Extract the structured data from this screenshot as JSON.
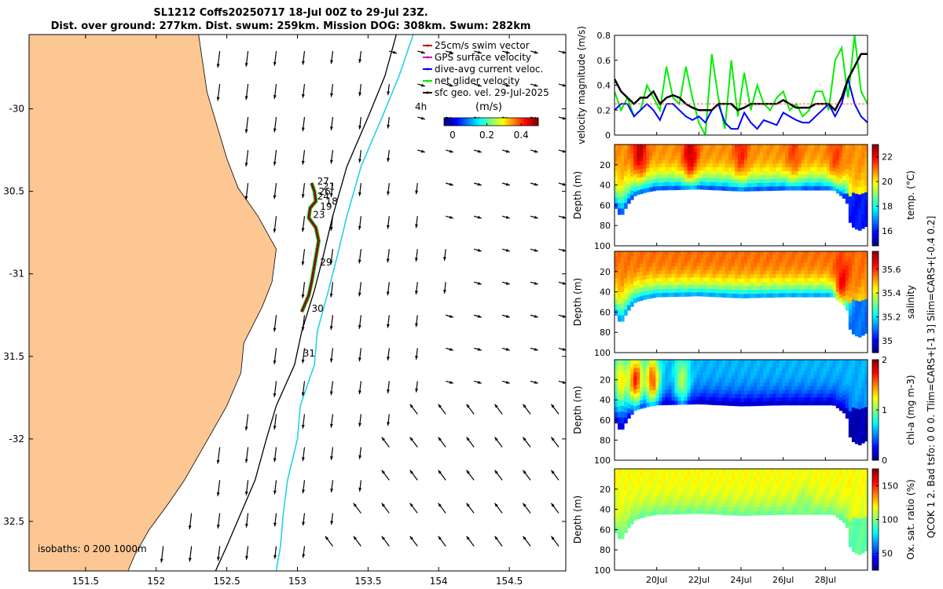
{
  "title_line1": "SL1212 Coffs20250717 18-Jul 00Z to 29-Jul 23Z.",
  "title_line2": "Dist. over ground: 277km. Dist. swum: 259km. Mission DOG: 308km. Swum: 282km",
  "side_label": "QCOK 1   2. Bad tsfo:  0   0   0. Tlim=CARS+[-1 3] Slim=CARS+[-0.4 0.2]",
  "chart_data": [
    {
      "type": "scatter",
      "name": "map",
      "xlim": [
        151.1,
        154.9
      ],
      "ylim": [
        -32.8,
        -29.55
      ],
      "x_ticks": [
        151.5,
        152,
        152.5,
        153,
        153.5,
        154,
        154.5
      ],
      "x_tick_labels": [
        "151.5",
        "152",
        "152.5",
        "153",
        "153.5",
        "154",
        "154.5"
      ],
      "y_ticks": [
        -30,
        -30.5,
        -31,
        -31.5,
        -32,
        -32.5
      ],
      "y_tick_labels": [
        "-30",
        "30.5",
        "-31",
        "31.5",
        "-32",
        "32.5"
      ],
      "legend": [
        "25cm/s swim vector",
        "GPS surface velocity",
        "dive-avg current veloc.",
        "net glider velocity",
        "sfc geo. vel. 29-Jul-2025"
      ],
      "legend_colors": [
        "#cc0000",
        "#cc00cc",
        "#0000ff",
        "#00ee00",
        "#000000"
      ],
      "scale_label": "4h",
      "colorbar": {
        "label": "(m/s)",
        "ticks": [
          0,
          0.2,
          0.4
        ],
        "tick_labels": [
          "0",
          "0.2",
          "0.4"
        ],
        "range": [
          -0.05,
          0.5
        ]
      },
      "isobaths_label": "isobaths: 0   200  1000m",
      "day_labels": [
        {
          "text": "27",
          "lon": 153.14,
          "lat": -30.46
        },
        {
          "text": "21",
          "lon": 153.18,
          "lat": -30.49
        },
        {
          "text": "26",
          "lon": 153.15,
          "lat": -30.52
        },
        {
          "text": "24",
          "lon": 153.14,
          "lat": -30.55
        },
        {
          "text": "18",
          "lon": 153.2,
          "lat": -30.58
        },
        {
          "text": "19",
          "lon": 153.16,
          "lat": -30.61
        },
        {
          "text": "23",
          "lon": 153.11,
          "lat": -30.66
        },
        {
          "text": "29",
          "lon": 153.16,
          "lat": -30.95
        },
        {
          "text": "30",
          "lon": 153.1,
          "lat": -31.23
        },
        {
          "text": "31",
          "lon": 153.04,
          "lat": -31.5
        }
      ],
      "glider_track": [
        [
          153.1,
          -30.45
        ],
        [
          153.12,
          -30.5
        ],
        [
          153.13,
          -30.56
        ],
        [
          153.09,
          -30.6
        ],
        [
          153.08,
          -30.66
        ],
        [
          153.13,
          -30.72
        ],
        [
          153.15,
          -30.8
        ],
        [
          153.12,
          -30.95
        ],
        [
          153.1,
          -31.05
        ],
        [
          153.08,
          -31.13
        ],
        [
          153.03,
          -31.23
        ]
      ],
      "coastline": [
        [
          152.3,
          -29.55
        ],
        [
          152.36,
          -29.9
        ],
        [
          152.5,
          -30.3
        ],
        [
          152.58,
          -30.48
        ],
        [
          152.72,
          -30.65
        ],
        [
          152.85,
          -30.85
        ],
        [
          152.82,
          -31.05
        ],
        [
          152.75,
          -31.2
        ],
        [
          152.62,
          -31.42
        ],
        [
          152.6,
          -31.6
        ],
        [
          152.5,
          -31.8
        ],
        [
          152.4,
          -31.95
        ],
        [
          152.3,
          -32.1
        ],
        [
          152.2,
          -32.25
        ],
        [
          152.08,
          -32.4
        ],
        [
          151.95,
          -32.55
        ],
        [
          151.85,
          -32.7
        ],
        [
          151.8,
          -32.8
        ]
      ],
      "isobath_200": [
        [
          153.7,
          -29.55
        ],
        [
          153.62,
          -29.8
        ],
        [
          153.5,
          -30.05
        ],
        [
          153.35,
          -30.35
        ],
        [
          153.25,
          -30.65
        ],
        [
          153.18,
          -30.9
        ],
        [
          153.12,
          -31.1
        ],
        [
          153.03,
          -31.35
        ],
        [
          152.98,
          -31.55
        ],
        [
          152.85,
          -31.8
        ],
        [
          152.78,
          -32.0
        ],
        [
          152.7,
          -32.25
        ],
        [
          152.6,
          -32.45
        ],
        [
          152.5,
          -32.65
        ],
        [
          152.42,
          -32.8
        ]
      ],
      "isobath_1000": [
        [
          153.82,
          -29.55
        ],
        [
          153.72,
          -29.8
        ],
        [
          153.6,
          -30.05
        ],
        [
          153.45,
          -30.35
        ],
        [
          153.35,
          -30.65
        ],
        [
          153.28,
          -30.9
        ],
        [
          153.22,
          -31.1
        ],
        [
          153.14,
          -31.35
        ],
        [
          153.12,
          -31.55
        ],
        [
          153.02,
          -31.8
        ],
        [
          153.0,
          -32.0
        ],
        [
          152.93,
          -32.25
        ],
        [
          152.9,
          -32.45
        ],
        [
          152.88,
          -32.65
        ],
        [
          152.85,
          -32.8
        ]
      ]
    },
    {
      "type": "line",
      "name": "velocity",
      "ylabel": "velocity magnitude (m/s)",
      "ylim": [
        0,
        0.8
      ],
      "y_ticks": [
        0,
        0.2,
        0.4,
        0.6,
        0.8
      ],
      "x_range_days": [
        18,
        30
      ],
      "series": [
        {
          "color": "#00ee00",
          "values": [
            0.35,
            0.2,
            0.3,
            0.15,
            0.2,
            0.4,
            0.3,
            0.2,
            0.55,
            0.3,
            0.25,
            0.55,
            0.3,
            0.1,
            0.0,
            0.65,
            0.3,
            0.05,
            0.6,
            0.15,
            0.5,
            0.2,
            0.4,
            0.25,
            0.2,
            0.3,
            0.35,
            0.2,
            0.25,
            0.15,
            0.2,
            0.35,
            0.35,
            0.2,
            0.6,
            0.7,
            0.3,
            0.8,
            0.35,
            0.25
          ]
        },
        {
          "color": "#0000ff",
          "values": [
            0.2,
            0.25,
            0.25,
            0.15,
            0.2,
            0.25,
            0.2,
            0.12,
            0.25,
            0.25,
            0.2,
            0.15,
            0.12,
            0.15,
            0.1,
            0.2,
            0.25,
            0.1,
            0.05,
            0.05,
            0.18,
            0.1,
            0.05,
            0.12,
            0.1,
            0.08,
            0.18,
            0.15,
            0.12,
            0.1,
            0.1,
            0.15,
            0.2,
            0.25,
            0.15,
            0.25,
            0.45,
            0.25,
            0.15,
            0.1
          ]
        },
        {
          "color": "#000000",
          "values": [
            0.45,
            0.35,
            0.3,
            0.25,
            0.3,
            0.3,
            0.35,
            0.25,
            0.3,
            0.32,
            0.3,
            0.25,
            0.22,
            0.2,
            0.2,
            0.2,
            0.25,
            0.25,
            0.25,
            0.2,
            0.22,
            0.25,
            0.25,
            0.25,
            0.25,
            0.25,
            0.28,
            0.25,
            0.22,
            0.22,
            0.22,
            0.25,
            0.25,
            0.25,
            0.2,
            0.3,
            0.45,
            0.55,
            0.65,
            0.65
          ]
        },
        {
          "color": "#ff5555",
          "values": [
            0.25,
            0.25,
            0.25,
            0.25,
            0.25,
            0.25,
            0.25,
            0.25,
            0.25,
            0.25,
            0.25,
            0.25,
            0.25,
            0.25,
            0.25,
            0.25,
            0.25,
            0.25,
            0.25,
            0.25,
            0.25,
            0.25,
            0.25,
            0.25,
            0.25,
            0.25,
            0.25,
            0.25,
            0.25,
            0.25,
            0.25,
            0.25,
            0.25,
            0.25,
            0.25,
            0.25,
            0.25,
            0.25,
            0.25,
            0.25
          ]
        }
      ]
    },
    {
      "type": "heatmap",
      "name": "temperature",
      "ylabel": "Depth (m)",
      "cbar_label": "temp. (°C)",
      "cbar_ticks": [
        16,
        18,
        20,
        22
      ],
      "cbar_range": [
        14.8,
        23
      ],
      "y_ticks": [
        20,
        40,
        60,
        80,
        100
      ],
      "ylim": [
        0,
        100
      ],
      "base_value": 20.8,
      "deep_value": 16,
      "blobs": [
        [
          19.2,
          5,
          22.5
        ],
        [
          21.6,
          8,
          22.5
        ],
        [
          24,
          5,
          21.8
        ],
        [
          26.5,
          5,
          21.5
        ],
        [
          28.5,
          10,
          21.5
        ]
      ]
    },
    {
      "type": "heatmap",
      "name": "salinity",
      "ylabel": "Depth (m)",
      "cbar_label": "salinity",
      "cbar_ticks": [
        35,
        35.2,
        35.4,
        35.6
      ],
      "cbar_range": [
        34.9,
        35.75
      ],
      "y_ticks": [
        20,
        40,
        60,
        80,
        100
      ],
      "ylim": [
        0,
        100
      ],
      "base_value": 35.55,
      "deep_value": 35.1,
      "blobs": [
        [
          28.8,
          30,
          35.65
        ]
      ]
    },
    {
      "type": "heatmap",
      "name": "chl",
      "ylabel": "Depth (m)",
      "cbar_label": "chl-a (mg m-3)",
      "cbar_ticks": [
        0,
        1,
        2
      ],
      "cbar_range": [
        0,
        2
      ],
      "y_ticks": [
        20,
        40,
        60,
        80,
        100
      ],
      "ylim": [
        0,
        100
      ],
      "base_value": 0.6,
      "deep_value": 0.1,
      "blobs": [
        [
          18.3,
          20,
          1.3
        ],
        [
          19.0,
          20,
          1.7
        ],
        [
          19.8,
          20,
          1.6
        ],
        [
          21.2,
          20,
          1.1
        ]
      ]
    },
    {
      "type": "heatmap",
      "name": "oxygen",
      "ylabel": "Depth (m)",
      "cbar_label": "Ox. sat. ratio (%)",
      "cbar_ticks": [
        50,
        100,
        150
      ],
      "cbar_range": [
        25,
        175
      ],
      "y_ticks": [
        20,
        40,
        60,
        80,
        100
      ],
      "ylim": [
        0,
        100
      ],
      "base_value": 118,
      "deep_value": 95,
      "blobs": [
        [
          27.0,
          45,
          100
        ]
      ]
    }
  ],
  "time_axis": {
    "ticks": [
      20,
      22,
      24,
      26,
      28
    ],
    "labels": [
      "20Jul",
      "22Jul",
      "24Jul",
      "26Jul",
      "28Jul"
    ],
    "range_days": [
      18,
      30
    ]
  },
  "profile_bottom_depth": [
    [
      18,
      60
    ],
    [
      18.3,
      72
    ],
    [
      18.6,
      60
    ],
    [
      19,
      50
    ],
    [
      19.5,
      47
    ],
    [
      20,
      45
    ],
    [
      22,
      44
    ],
    [
      24,
      46
    ],
    [
      26,
      45
    ],
    [
      27.6,
      45
    ],
    [
      28.4,
      45
    ],
    [
      29.0,
      55
    ],
    [
      29.2,
      80
    ],
    [
      29.6,
      85
    ],
    [
      30,
      80
    ]
  ]
}
